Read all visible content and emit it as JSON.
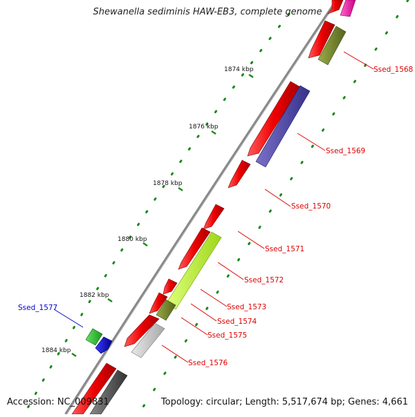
{
  "title": "Shewanella sediminis HAW-EB3, complete genome",
  "footer": {
    "accession": "Accession: NC_009831",
    "summary": "Topology: circular; Length: 5,517,674 bp; Genes: 4,661"
  },
  "scale": {
    "ticks": [
      {
        "label": "1874 kbp"
      },
      {
        "label": "1876 kbp"
      },
      {
        "label": "1878 kbp"
      },
      {
        "label": "1880 kbp"
      },
      {
        "label": "1882 kbp"
      },
      {
        "label": "1884 kbp"
      }
    ]
  },
  "genes": [
    {
      "label": "Ssed_1568",
      "color": "#dd0000"
    },
    {
      "label": "Ssed_1569",
      "color": "#dd0000"
    },
    {
      "label": "Ssed_1570",
      "color": "#dd0000"
    },
    {
      "label": "Ssed_1571",
      "color": "#dd0000"
    },
    {
      "label": "Ssed_1572",
      "color": "#dd0000"
    },
    {
      "label": "Ssed_1573",
      "color": "#dd0000"
    },
    {
      "label": "Ssed_1574",
      "color": "#dd0000"
    },
    {
      "label": "Ssed_1575",
      "color": "#dd0000"
    },
    {
      "label": "Ssed_1576",
      "color": "#dd0000"
    },
    {
      "label": "Ssed_1577",
      "color": "#0000cc"
    }
  ]
}
